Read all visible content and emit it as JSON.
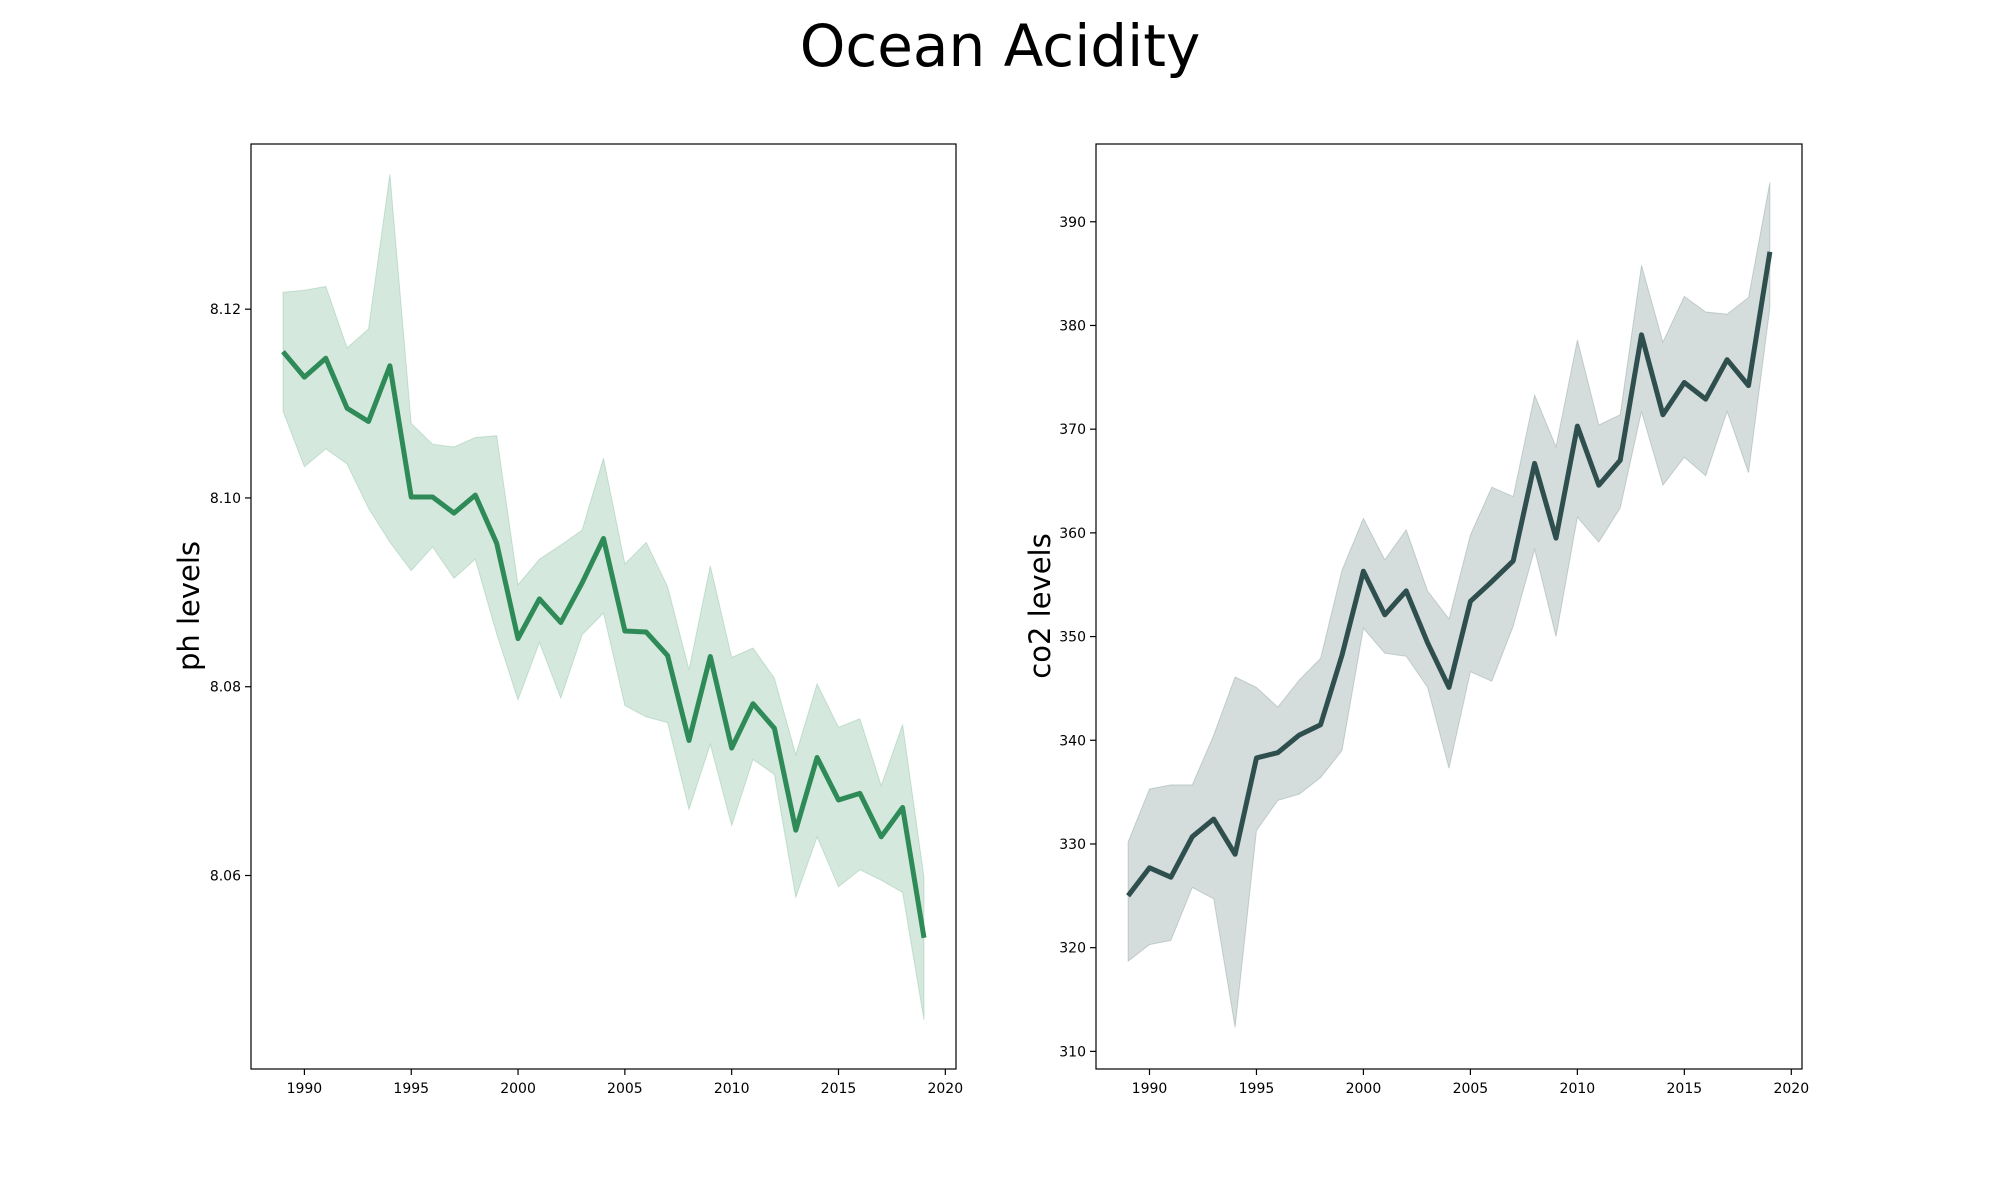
{
  "figure": {
    "title": "Ocean Acidity"
  },
  "chart_data": [
    {
      "type": "line",
      "title": "",
      "xlabel": "",
      "ylabel": "ph levels",
      "color": "#2e8b57",
      "xlim": [
        1987.5,
        2020.5
      ],
      "ylim": [
        8.0395,
        8.1375
      ],
      "xticks": [
        1990,
        1995,
        2000,
        2005,
        2010,
        2015,
        2020
      ],
      "yticks": [
        8.06,
        8.08,
        8.1,
        8.12
      ],
      "ytick_labels": [
        "8.06",
        "8.08",
        "8.10",
        "8.12"
      ],
      "x": [
        1989,
        1990,
        1991,
        1992,
        1993,
        1994,
        1995,
        1996,
        1997,
        1998,
        1999,
        2000,
        2001,
        2002,
        2003,
        2004,
        2005,
        2006,
        2007,
        2008,
        2009,
        2010,
        2011,
        2012,
        2013,
        2014,
        2015,
        2016,
        2017,
        2018,
        2019
      ],
      "series": [
        {
          "values": [
            8.1155,
            8.1128,
            8.1148,
            8.1095,
            8.1081,
            8.114,
            8.1001,
            8.1001,
            8.0984,
            8.1003,
            8.0952,
            8.0851,
            8.0893,
            8.0868,
            8.091,
            8.0957,
            8.0859,
            8.0858,
            8.0833,
            8.0743,
            8.0832,
            8.0735,
            8.0782,
            8.0756,
            8.0648,
            8.0725,
            8.068,
            8.0687,
            8.0641,
            8.0672,
            8.0534
          ],
          "upper": [
            8.1218,
            8.122,
            8.1224,
            8.1159,
            8.1179,
            8.1343,
            8.1079,
            8.1057,
            8.1054,
            8.1064,
            8.1066,
            8.0908,
            8.0935,
            8.095,
            8.0966,
            8.1042,
            8.093,
            8.0953,
            8.0906,
            8.0818,
            8.0928,
            8.0831,
            8.0841,
            8.0809,
            8.0728,
            8.0803,
            8.0757,
            8.0766,
            8.0695,
            8.076,
            8.0598
          ],
          "lower": [
            8.1092,
            8.1033,
            8.1052,
            8.1036,
            8.0989,
            8.0953,
            8.0923,
            8.0948,
            8.0915,
            8.0935,
            8.0856,
            8.0786,
            8.0847,
            8.0788,
            8.0855,
            8.0878,
            8.078,
            8.0768,
            8.0762,
            8.067,
            8.0739,
            8.0653,
            8.0723,
            8.0707,
            8.0577,
            8.0641,
            8.0588,
            8.0606,
            8.0595,
            8.0582,
            8.0447
          ]
        }
      ]
    },
    {
      "type": "line",
      "title": "",
      "xlabel": "",
      "ylabel": "co2 levels",
      "color": "#2f4f4f",
      "xlim": [
        1987.5,
        2020.5
      ],
      "ylim": [
        308.3,
        397.5
      ],
      "xticks": [
        1990,
        1995,
        2000,
        2005,
        2010,
        2015,
        2020
      ],
      "yticks": [
        310,
        320,
        330,
        340,
        350,
        360,
        370,
        380,
        390
      ],
      "ytick_labels": [
        "310",
        "320",
        "330",
        "340",
        "350",
        "360",
        "370",
        "380",
        "390"
      ],
      "x": [
        1989,
        1990,
        1991,
        1992,
        1993,
        1994,
        1995,
        1996,
        1997,
        1998,
        1999,
        2000,
        2001,
        2002,
        2003,
        2004,
        2005,
        2006,
        2007,
        2008,
        2009,
        2010,
        2011,
        2012,
        2013,
        2014,
        2015,
        2016,
        2017,
        2018,
        2019
      ],
      "series": [
        {
          "values": [
            325.0,
            327.7,
            326.8,
            330.7,
            332.4,
            329.0,
            338.3,
            338.8,
            340.5,
            341.5,
            348.2,
            356.3,
            352.1,
            354.4,
            349.4,
            345.1,
            353.4,
            355.3,
            357.3,
            366.7,
            359.5,
            370.3,
            364.6,
            367.0,
            379.1,
            371.4,
            374.5,
            372.9,
            376.7,
            374.2,
            387.1
          ],
          "upper": [
            330.2,
            335.3,
            335.7,
            335.7,
            340.5,
            346.1,
            345.1,
            343.2,
            345.8,
            347.9,
            356.4,
            361.4,
            357.4,
            360.3,
            354.4,
            351.7,
            359.8,
            364.4,
            363.5,
            373.3,
            368.3,
            378.6,
            370.4,
            371.4,
            385.8,
            378.4,
            382.8,
            381.3,
            381.1,
            382.7,
            393.8
          ],
          "lower": [
            318.7,
            320.3,
            320.7,
            325.8,
            324.7,
            312.3,
            331.3,
            334.2,
            334.8,
            336.4,
            339.0,
            350.8,
            348.4,
            348.1,
            345.1,
            337.3,
            346.6,
            345.7,
            351.0,
            358.4,
            350.0,
            361.5,
            359.1,
            362.4,
            371.7,
            364.6,
            367.3,
            365.5,
            371.7,
            365.8,
            381.7
          ]
        }
      ]
    }
  ]
}
